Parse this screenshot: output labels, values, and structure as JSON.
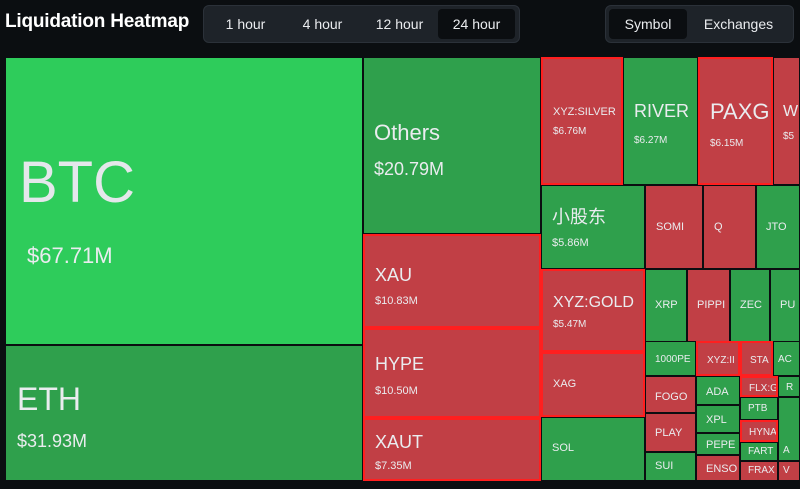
{
  "header": {
    "title": "Liquidation Heatmap",
    "time_options": [
      "1 hour",
      "4 hour",
      "12 hour",
      "24 hour"
    ],
    "time_selected": "24 hour",
    "view_options": [
      "Symbol",
      "Exchanges"
    ],
    "view_selected": "Symbol"
  },
  "colors": {
    "background": "#0b0e11",
    "btc": "#2ecc5b",
    "positive": "#2fa04c",
    "negative": "#c13f45",
    "highlight_border": "#ff1f1f"
  },
  "tiles": [
    {
      "symbol": "BTC",
      "value": "$67.71M",
      "tone": "btc"
    },
    {
      "symbol": "ETH",
      "value": "$31.93M",
      "tone": "positive"
    },
    {
      "symbol": "Others",
      "value": "$20.79M",
      "tone": "positive"
    },
    {
      "symbol": "XAU",
      "value": "$10.83M",
      "tone": "negative"
    },
    {
      "symbol": "HYPE",
      "value": "$10.50M",
      "tone": "negative"
    },
    {
      "symbol": "XAUT",
      "value": "$7.35M",
      "tone": "negative"
    },
    {
      "symbol": "XYZ:SILVER",
      "value": "$6.76M",
      "tone": "negative"
    },
    {
      "symbol": "RIVER",
      "value": "$6.27M",
      "tone": "positive"
    },
    {
      "symbol": "PAXG",
      "value": "$6.15M",
      "tone": "negative"
    },
    {
      "symbol": "W",
      "value": "$5",
      "tone": "negative"
    },
    {
      "symbol": "小股东",
      "value": "$5.86M",
      "tone": "positive"
    },
    {
      "symbol": "SOMI",
      "value": "",
      "tone": "negative"
    },
    {
      "symbol": "Q",
      "value": "",
      "tone": "negative"
    },
    {
      "symbol": "JTO",
      "value": "",
      "tone": "positive"
    },
    {
      "symbol": "XYZ:GOLD",
      "value": "$5.47M",
      "tone": "negative"
    },
    {
      "symbol": "XRP",
      "value": "",
      "tone": "positive"
    },
    {
      "symbol": "PIPPI",
      "value": "",
      "tone": "negative"
    },
    {
      "symbol": "ZEC",
      "value": "",
      "tone": "positive"
    },
    {
      "symbol": "PU",
      "value": "",
      "tone": "positive"
    },
    {
      "symbol": "XAG",
      "value": "",
      "tone": "negative"
    },
    {
      "symbol": "SOL",
      "value": "",
      "tone": "positive"
    },
    {
      "symbol": "1000PE",
      "value": "",
      "tone": "positive"
    },
    {
      "symbol": "XYZ:II",
      "value": "",
      "tone": "negative"
    },
    {
      "symbol": "STA",
      "value": "",
      "tone": "negative"
    },
    {
      "symbol": "AC",
      "value": "",
      "tone": "positive"
    },
    {
      "symbol": "FOGO",
      "value": "",
      "tone": "negative"
    },
    {
      "symbol": "ADA",
      "value": "",
      "tone": "positive"
    },
    {
      "symbol": "FLX:G",
      "value": "",
      "tone": "negative"
    },
    {
      "symbol": "R",
      "value": "",
      "tone": "positive"
    },
    {
      "symbol": "XPL",
      "value": "",
      "tone": "positive"
    },
    {
      "symbol": "PTB",
      "value": "",
      "tone": "positive"
    },
    {
      "symbol": "PLAY",
      "value": "",
      "tone": "negative"
    },
    {
      "symbol": "HYNA",
      "value": "",
      "tone": "negative"
    },
    {
      "symbol": "PEPE",
      "value": "",
      "tone": "positive"
    },
    {
      "symbol": "FART",
      "value": "",
      "tone": "positive"
    },
    {
      "symbol": "A",
      "value": "",
      "tone": "positive"
    },
    {
      "symbol": "SUI",
      "value": "",
      "tone": "positive"
    },
    {
      "symbol": "ENSO",
      "value": "",
      "tone": "negative"
    },
    {
      "symbol": "FRAX",
      "value": "",
      "tone": "negative"
    },
    {
      "symbol": "V",
      "value": "",
      "tone": "negative"
    }
  ]
}
